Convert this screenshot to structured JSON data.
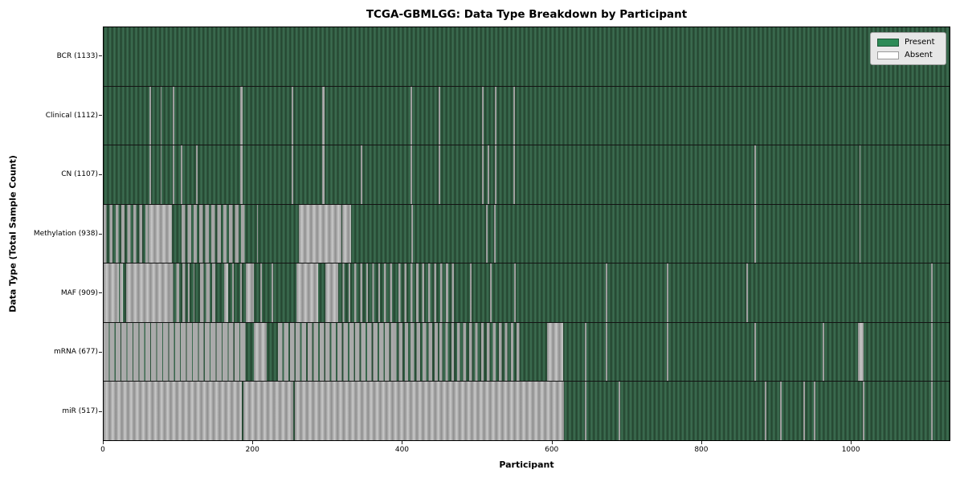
{
  "header": {
    "title": "TCGA-GBMLGG: Data Type Breakdown by Participant"
  },
  "chart_data": {
    "type": "heatmap",
    "title": "TCGA-GBMLGG: Data Type Breakdown by Participant",
    "xlabel": "Participant",
    "ylabel": "Data Type (Total Sample Count)",
    "x_range": [
      0,
      1133
    ],
    "x_ticks": [
      0,
      200,
      400,
      600,
      800,
      1000
    ],
    "grid": false,
    "legend": {
      "position": "upper right",
      "items": [
        {
          "label": "Present",
          "color": "#2e8b57"
        },
        {
          "label": "Absent",
          "color": "#ffffff"
        }
      ]
    },
    "colors": {
      "present_stripe_dark": "#23432e",
      "present_stripe_light": "#3e7154",
      "absent_stripe_dark": "#8e8e8e",
      "absent_stripe_light": "#c9c9c9"
    },
    "rows": [
      {
        "id": "bcr",
        "label": "BCR (1133)",
        "total": 1133,
        "absent_segments": [],
        "mixed_segments": []
      },
      {
        "id": "clinical",
        "label": "Clinical (1112)",
        "total": 1112,
        "absent_segments": [
          [
            61,
            63
          ],
          [
            76,
            78
          ],
          [
            93,
            95
          ],
          [
            183,
            186
          ],
          [
            252,
            254
          ],
          [
            293,
            296
          ],
          [
            411,
            413
          ],
          [
            449,
            451
          ],
          [
            507,
            509
          ],
          [
            524,
            526
          ],
          [
            549,
            551
          ]
        ],
        "mixed_segments": []
      },
      {
        "id": "cn",
        "label": "CN (1107)",
        "total": 1107,
        "absent_segments": [
          [
            61,
            63
          ],
          [
            76,
            78
          ],
          [
            93,
            95
          ],
          [
            103,
            105
          ],
          [
            124,
            126
          ],
          [
            183,
            186
          ],
          [
            252,
            254
          ],
          [
            293,
            296
          ],
          [
            344,
            346
          ],
          [
            411,
            413
          ],
          [
            449,
            451
          ],
          [
            507,
            509
          ],
          [
            514,
            517
          ],
          [
            524,
            526
          ],
          [
            549,
            551
          ],
          [
            872,
            874
          ],
          [
            1012,
            1014
          ]
        ],
        "mixed_segments": []
      },
      {
        "id": "methylation",
        "label": "Methylation (938)",
        "total": 938,
        "absent_segments": [
          [
            60,
            91
          ],
          [
            205,
            207
          ],
          [
            261,
            318
          ],
          [
            320,
            331
          ],
          [
            412,
            414
          ],
          [
            512,
            514
          ],
          [
            523,
            525
          ],
          [
            872,
            874
          ],
          [
            1012,
            1014
          ]
        ],
        "mixed_segments": [
          [
            0,
            60,
            50
          ],
          [
            104,
            192,
            60
          ]
        ]
      },
      {
        "id": "maf",
        "label": "MAF (909)",
        "total": 909,
        "absent_segments": [
          [
            0,
            20
          ],
          [
            21,
            26
          ],
          [
            30,
            89
          ],
          [
            120,
            122
          ],
          [
            161,
            167
          ],
          [
            172,
            174
          ],
          [
            183,
            185
          ],
          [
            190,
            201
          ],
          [
            210,
            212
          ],
          [
            225,
            227
          ],
          [
            258,
            287
          ],
          [
            297,
            312
          ],
          [
            491,
            493
          ],
          [
            518,
            520
          ],
          [
            550,
            552
          ],
          [
            673,
            675
          ],
          [
            754,
            756
          ],
          [
            861,
            863
          ],
          [
            1108,
            1110
          ]
        ],
        "mixed_segments": [
          [
            89,
            115,
            50
          ],
          [
            129,
            150,
            60
          ],
          [
            312,
            390,
            30
          ],
          [
            395,
            475,
            35
          ]
        ]
      },
      {
        "id": "mrna",
        "label": "mRNA (677)",
        "total": 677,
        "absent_segments": [
          [
            201,
            218
          ],
          [
            594,
            616
          ],
          [
            645,
            647
          ],
          [
            673,
            675
          ],
          [
            754,
            756
          ],
          [
            872,
            874
          ],
          [
            963,
            965
          ],
          [
            1010,
            1018
          ],
          [
            1108,
            1110
          ]
        ],
        "mixed_segments": [
          [
            0,
            190,
            85
          ],
          [
            233,
            387,
            75
          ],
          [
            387,
            450,
            60
          ],
          [
            450,
            560,
            45
          ]
        ]
      },
      {
        "id": "mir",
        "label": "miR (517)",
        "total": 517,
        "absent_segments": [
          [
            0,
            185
          ],
          [
            187,
            254
          ],
          [
            256,
            616
          ],
          [
            645,
            647
          ],
          [
            690,
            692
          ],
          [
            886,
            888
          ],
          [
            906,
            908
          ],
          [
            937,
            939
          ],
          [
            951,
            953
          ],
          [
            1017,
            1019
          ],
          [
            1108,
            1110
          ]
        ],
        "mixed_segments": []
      }
    ]
  }
}
